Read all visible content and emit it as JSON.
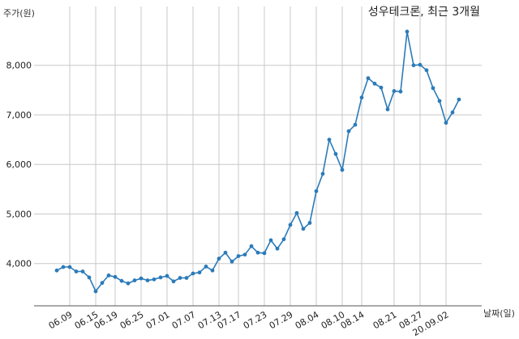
{
  "chart_data": {
    "type": "line",
    "title": "성우테크론, 최근 3개월",
    "ylabel": "주가(원)",
    "xlabel": "날짜(일)",
    "ylim": [
      3150,
      8900
    ],
    "yticks": [
      4000,
      5000,
      6000,
      7000,
      8000
    ],
    "ytick_labels": [
      "4,000",
      "5,000",
      "6,000",
      "7,000",
      "8,000"
    ],
    "grid": true,
    "color": "#2b7bb9",
    "xtick_labels": [
      "06.09",
      "06.15",
      "06.19",
      "06.25",
      "07.01",
      "07.07",
      "07.13",
      "07.17",
      "07.23",
      "07.29",
      "08.04",
      "08.10",
      "08.14",
      "08.21",
      "08.27",
      "20.09.02"
    ],
    "xtick_index": [
      2,
      6,
      9,
      13,
      17,
      21,
      25,
      28,
      32,
      36,
      40,
      44,
      47,
      52,
      56,
      60
    ],
    "series": [
      {
        "name": "",
        "values": [
          3860,
          3930,
          3930,
          3840,
          3840,
          3720,
          3440,
          3610,
          3760,
          3730,
          3650,
          3600,
          3660,
          3700,
          3660,
          3680,
          3720,
          3750,
          3640,
          3710,
          3710,
          3800,
          3820,
          3940,
          3860,
          4100,
          4220,
          4040,
          4150,
          4180,
          4350,
          4220,
          4210,
          4470,
          4300,
          4490,
          4780,
          5020,
          4700,
          4820,
          5460,
          5810,
          6500,
          6210,
          5890,
          6670,
          6800,
          7350,
          7740,
          7630,
          7550,
          7110,
          7480,
          7470,
          8680,
          8000,
          8010,
          7900,
          7540,
          7280,
          6840,
          7050,
          7310
        ]
      }
    ]
  }
}
